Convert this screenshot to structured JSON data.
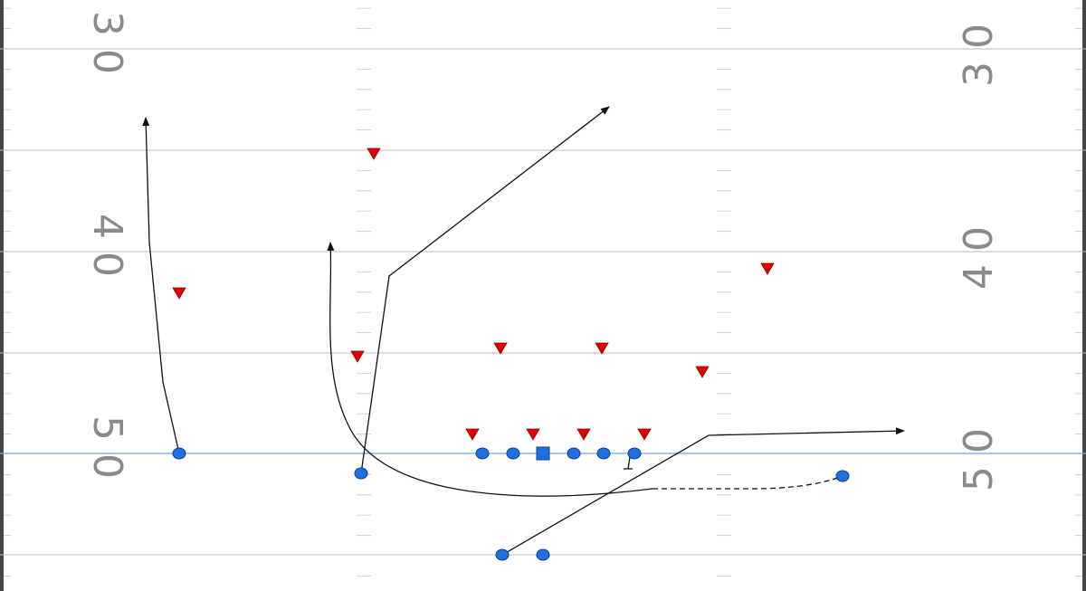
{
  "yard_numbers": {
    "left": [
      "30",
      "40",
      "50"
    ],
    "right": [
      "30",
      "40",
      "50"
    ]
  },
  "colors": {
    "offense": "#1f6fe0",
    "defense": "#e00000",
    "route": "#111111",
    "line_of_scrimmage": "#6fa8dc",
    "yard_line": "#bdbdbd",
    "hash_mark": "#cfcfcf",
    "yard_number": "#8a8a8a"
  },
  "formation": {
    "center_symbol": "square",
    "offense_symbol": "circle",
    "defense_symbol": "triangle-down"
  }
}
